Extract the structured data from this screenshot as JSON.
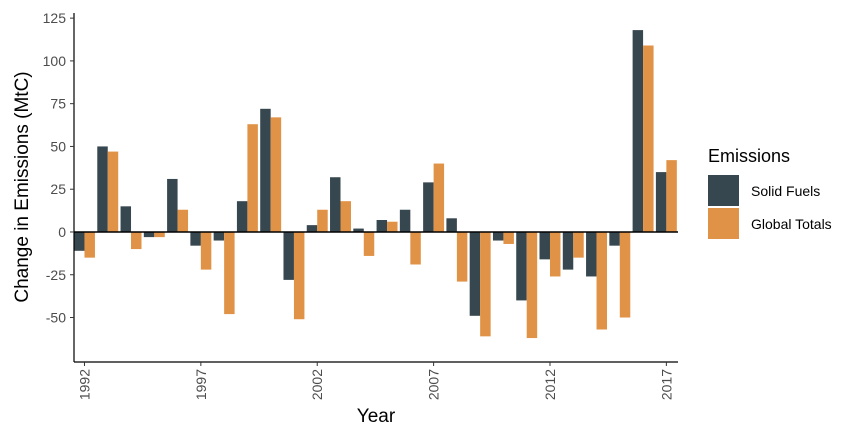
{
  "chart_data": {
    "type": "bar",
    "x_label": "Year",
    "y_label": "Change in Emissions (MtC)",
    "legend_title": "Emissions",
    "legend": "right",
    "x": [
      1992,
      1993,
      1994,
      1995,
      1996,
      1997,
      1998,
      1999,
      2000,
      2001,
      2002,
      2003,
      2004,
      2005,
      2006,
      2007,
      2008,
      2009,
      2010,
      2011,
      2012,
      2013,
      2014,
      2015,
      2016,
      2017
    ],
    "series": [
      {
        "name": "Solid Fuels",
        "color": "#36474f",
        "values": [
          -11,
          50,
          15,
          -3,
          31,
          -8,
          -5,
          18,
          72,
          -28,
          4,
          32,
          2,
          7,
          13,
          29,
          8,
          -49,
          -5,
          -40,
          -16,
          -22,
          -26,
          -8,
          118,
          35
        ]
      },
      {
        "name": "Global Totals",
        "color": "#e09246",
        "values": [
          -15,
          47,
          -10,
          -3,
          13,
          -22,
          -48,
          63,
          67,
          -51,
          13,
          18,
          -14,
          6,
          -19,
          40,
          -29,
          -61,
          -7,
          -62,
          -26,
          -15,
          -57,
          -50,
          109,
          42
        ]
      }
    ],
    "xlim": [
      1991.55,
      2017.5
    ],
    "xticks": [
      1992,
      1997,
      2002,
      2007,
      2012,
      2017
    ],
    "ylim": [
      -76,
      128
    ],
    "yticks": [
      -50,
      -25,
      0,
      25,
      50,
      75,
      100,
      125
    ],
    "grid": false
  }
}
